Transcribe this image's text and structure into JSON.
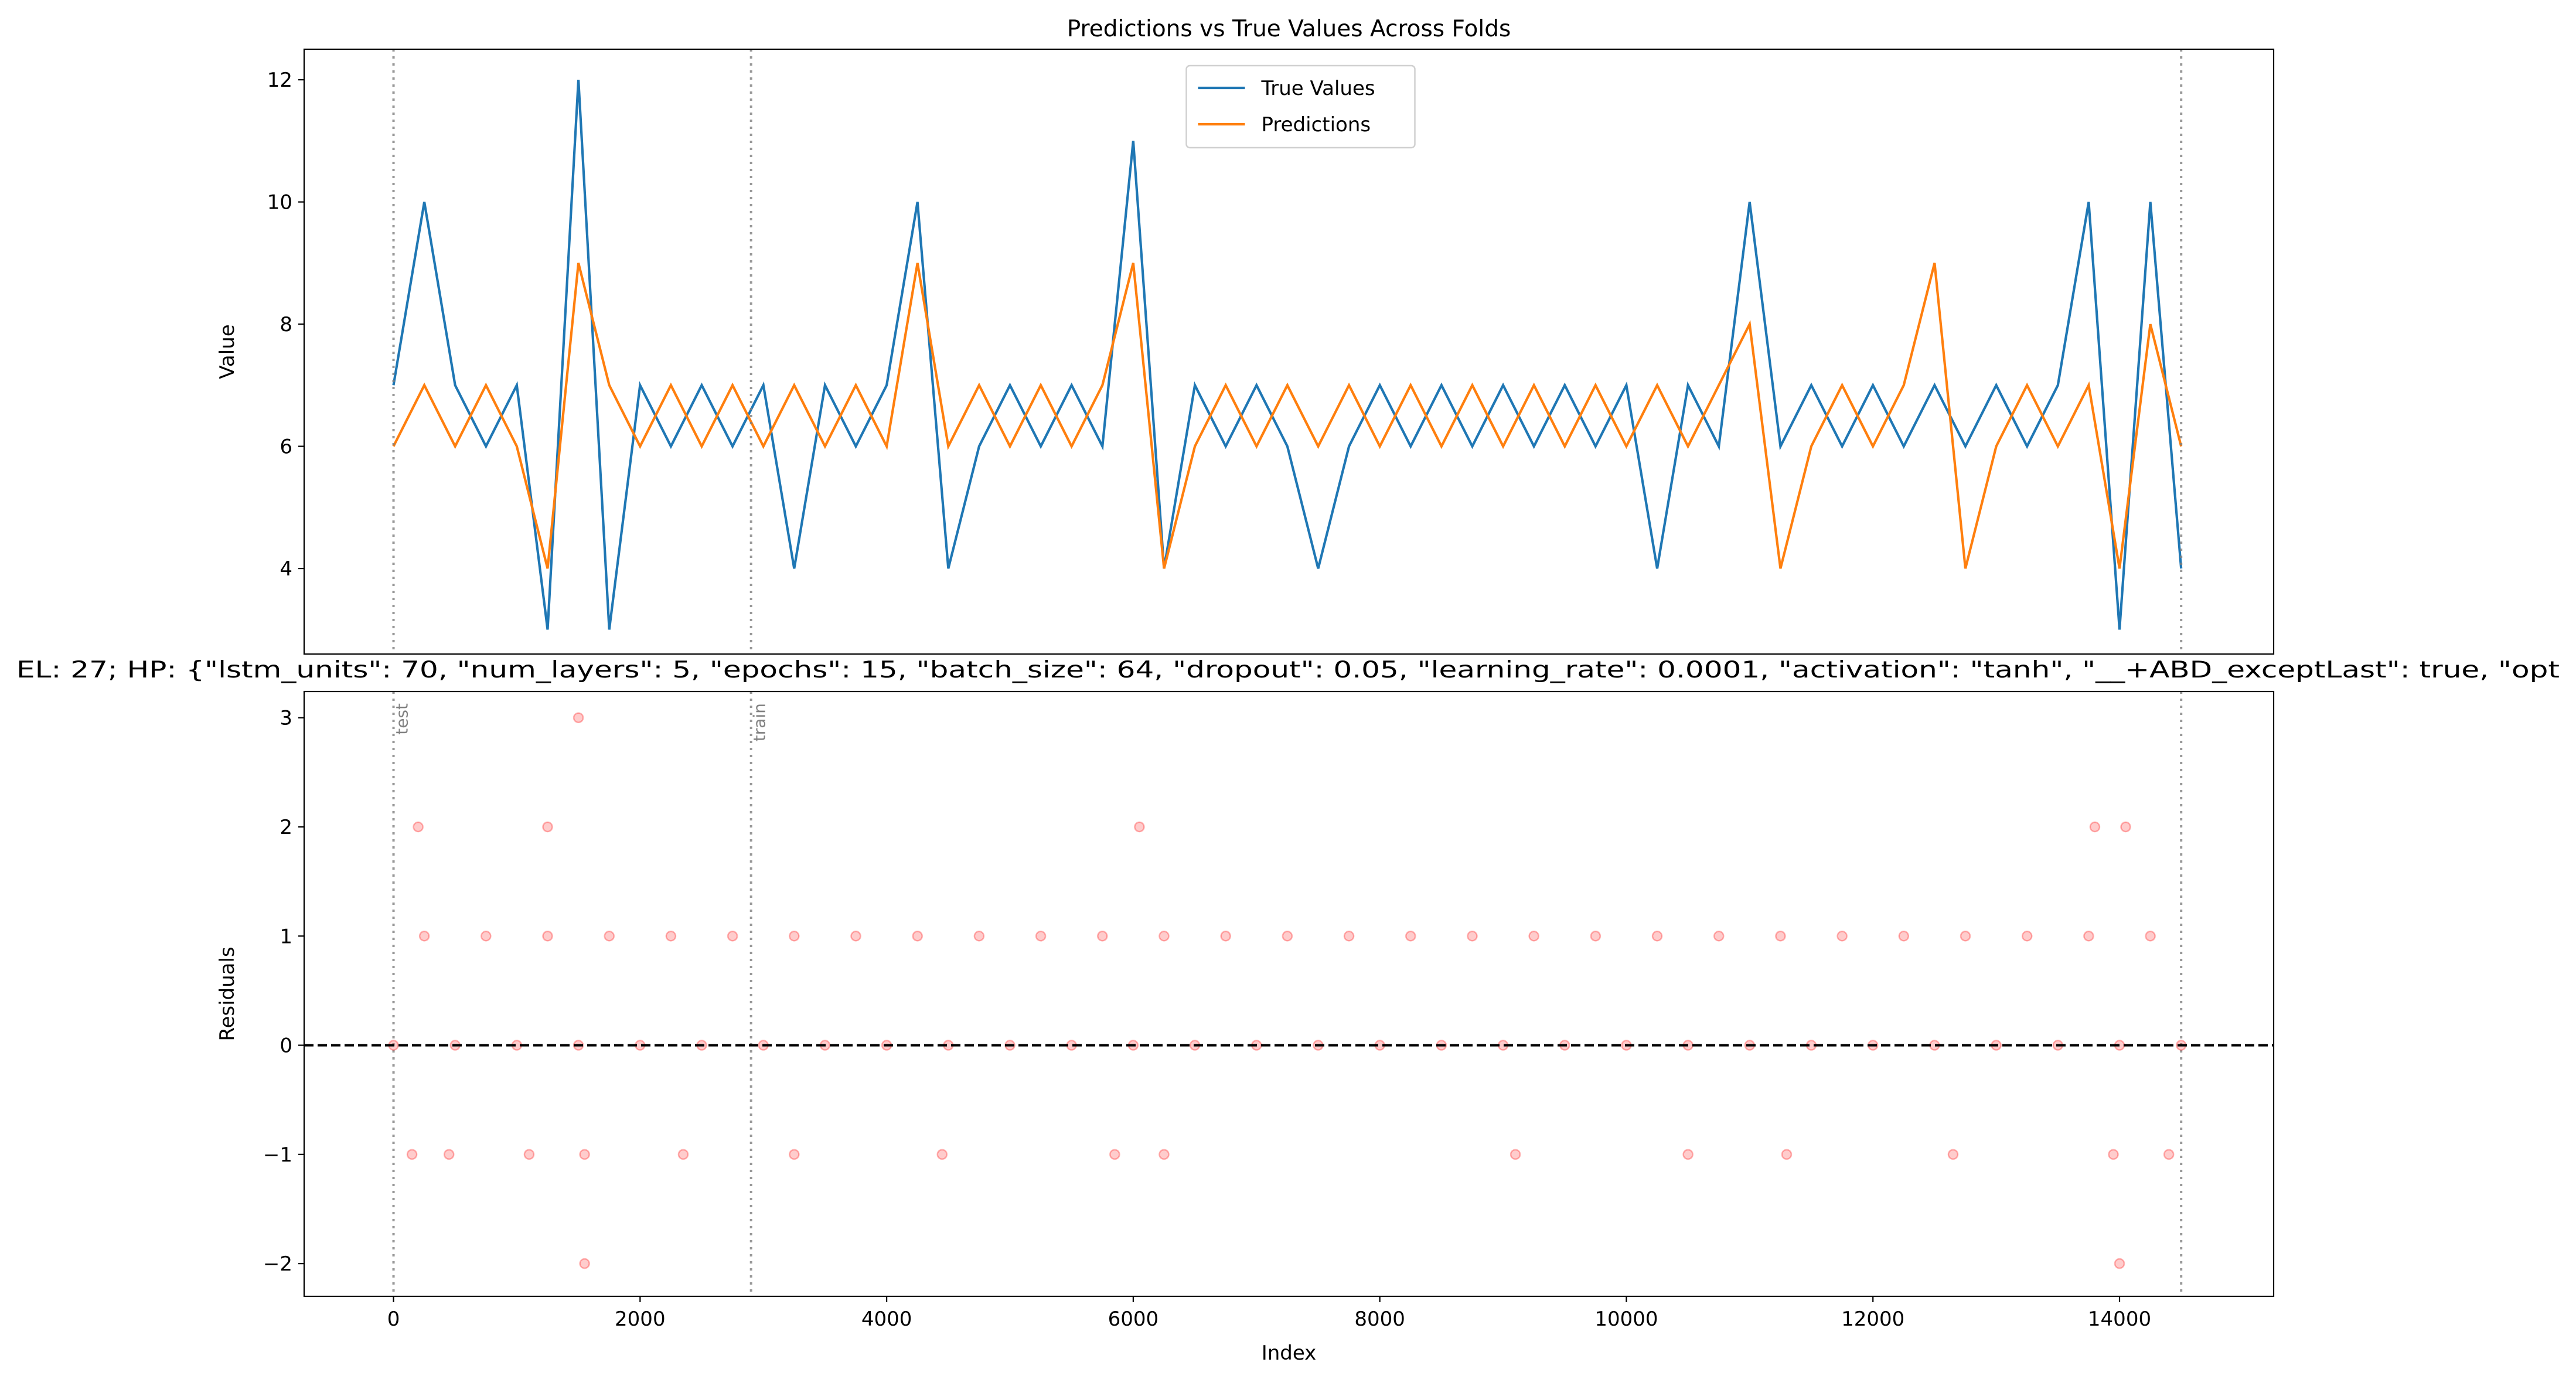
{
  "chart_data": [
    {
      "type": "line",
      "title": "Predictions vs True Values Across Folds",
      "y_label": "Value",
      "xlim": [
        -725,
        15250
      ],
      "ylim": [
        2.6,
        12.5
      ],
      "yticks": [
        4,
        6,
        8,
        10,
        12
      ],
      "legend": "upper center",
      "vlines": [
        0,
        2900,
        14500
      ],
      "x": [
        0,
        250,
        500,
        750,
        1000,
        1250,
        1500,
        1750,
        2000,
        2250,
        2500,
        2750,
        3000,
        3250,
        3500,
        3750,
        4000,
        4250,
        4500,
        4750,
        5000,
        5250,
        5500,
        5750,
        6000,
        6250,
        6500,
        6750,
        7000,
        7250,
        7500,
        7750,
        8000,
        8250,
        8500,
        8750,
        9000,
        9250,
        9500,
        9750,
        10000,
        10250,
        10500,
        10750,
        11000,
        11250,
        11500,
        11750,
        12000,
        12250,
        12500,
        12750,
        13000,
        13250,
        13500,
        13750,
        14000,
        14250,
        14500
      ],
      "series": [
        {
          "name": "True Values",
          "color": "#1f77b4",
          "values": [
            7,
            10,
            7,
            6,
            7,
            3,
            12,
            3,
            7,
            6,
            7,
            6,
            7,
            4,
            7,
            6,
            7,
            10,
            4,
            6,
            7,
            6,
            7,
            6,
            11,
            4,
            7,
            6,
            7,
            6,
            4,
            6,
            7,
            6,
            7,
            6,
            7,
            6,
            7,
            6,
            7,
            4,
            7,
            6,
            10,
            6,
            7,
            6,
            7,
            6,
            7,
            6,
            7,
            6,
            7,
            10,
            3,
            10,
            4
          ]
        },
        {
          "name": "Predictions",
          "color": "#ff7f0e",
          "values": [
            6,
            7,
            6,
            7,
            6,
            4,
            9,
            7,
            6,
            7,
            6,
            7,
            6,
            7,
            6,
            7,
            6,
            9,
            6,
            7,
            6,
            7,
            6,
            7,
            9,
            4,
            6,
            7,
            6,
            7,
            6,
            7,
            6,
            7,
            6,
            7,
            6,
            7,
            6,
            7,
            6,
            7,
            6,
            7,
            8,
            4,
            6,
            7,
            6,
            7,
            9,
            4,
            6,
            7,
            6,
            7,
            4,
            8,
            6
          ]
        }
      ]
    },
    {
      "type": "scatter",
      "title": "EL: 27; HP: {\"lstm_units\": 70, \"num_layers\": 5, \"epochs\": 15, \"batch_size\": 64, \"dropout\": 0.05, \"learning_rate\": 0.0001, \"activation\": \"tanh\", \"__+ABD_exceptLast\": true, \"opt",
      "x_label": "Index",
      "y_label": "Residuals",
      "xlim": [
        -725,
        15250
      ],
      "xticks": [
        0,
        2000,
        4000,
        6000,
        8000,
        10000,
        12000,
        14000
      ],
      "ylim": [
        -2.3,
        3.24
      ],
      "yticks": [
        {
          "value": -2,
          "label": "−2"
        },
        {
          "value": -1,
          "label": "−1"
        },
        0,
        1,
        2,
        3
      ],
      "axhline": 0,
      "color": "#ff0000",
      "alpha": 0.2,
      "fold_lines": [
        {
          "x": 0,
          "label": "test"
        },
        {
          "x": 2900,
          "label": "train"
        },
        {
          "x": 14500
        }
      ],
      "x": [
        0,
        500,
        1000,
        1500,
        2000,
        2500,
        3000,
        3500,
        4000,
        4500,
        5000,
        5500,
        6000,
        6500,
        7000,
        7500,
        8000,
        8500,
        9000,
        9500,
        10000,
        10500,
        11000,
        11500,
        12000,
        12500,
        13000,
        13500,
        14000,
        14500,
        250,
        750,
        1250,
        1750,
        2250,
        2750,
        3250,
        3750,
        4250,
        4750,
        5250,
        5750,
        6250,
        6750,
        7250,
        7750,
        8250,
        8750,
        9250,
        9750,
        10250,
        10750,
        11250,
        11750,
        12250,
        12750,
        13250,
        13750,
        14250,
        150,
        450,
        1100,
        1550,
        2350,
        3250,
        4450,
        5850,
        6250,
        9100,
        10500,
        11300,
        12650,
        13950,
        14400,
        200,
        1250,
        6050,
        13800,
        14050,
        1500,
        1550,
        14000
      ],
      "y": [
        0,
        0,
        0,
        0,
        0,
        0,
        0,
        0,
        0,
        0,
        0,
        0,
        0,
        0,
        0,
        0,
        0,
        0,
        0,
        0,
        0,
        0,
        0,
        0,
        0,
        0,
        0,
        0,
        0,
        0,
        1,
        1,
        1,
        1,
        1,
        1,
        1,
        1,
        1,
        1,
        1,
        1,
        1,
        1,
        1,
        1,
        1,
        1,
        1,
        1,
        1,
        1,
        1,
        1,
        1,
        1,
        1,
        1,
        1,
        -1,
        -1,
        -1,
        -1,
        -1,
        -1,
        -1,
        -1,
        -1,
        -1,
        -1,
        -1,
        -1,
        -1,
        -1,
        2,
        2,
        2,
        2,
        2,
        3,
        -2,
        -2
      ]
    }
  ]
}
